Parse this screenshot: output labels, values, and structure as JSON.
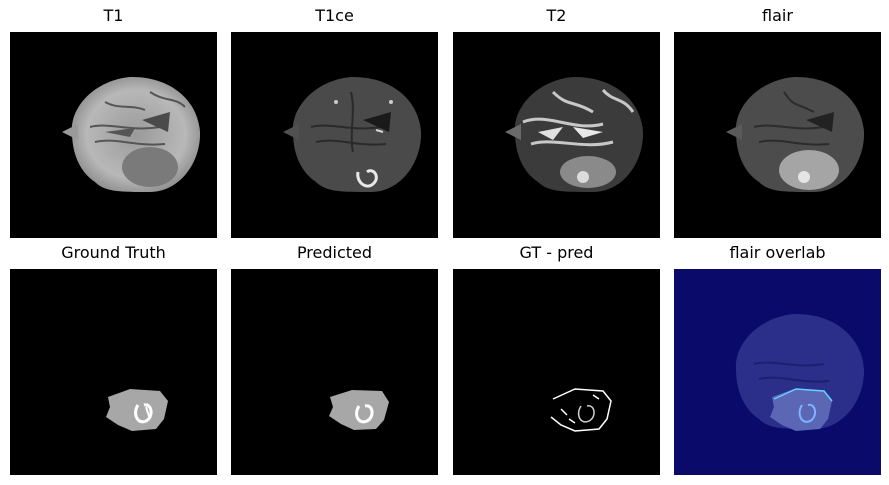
{
  "figure": {
    "panels": [
      {
        "title": "T1",
        "image": "t1-mri-slice"
      },
      {
        "title": "T1ce",
        "image": "t1ce-mri-slice"
      },
      {
        "title": "T2",
        "image": "t2-mri-slice"
      },
      {
        "title": "flair",
        "image": "flair-mri-slice"
      },
      {
        "title": "Ground Truth",
        "image": "ground-truth-mask"
      },
      {
        "title": "Predicted",
        "image": "predicted-mask"
      },
      {
        "title": "GT - pred",
        "image": "difference-mask"
      },
      {
        "title": "flair overlab",
        "image": "flair-overlay"
      }
    ]
  }
}
